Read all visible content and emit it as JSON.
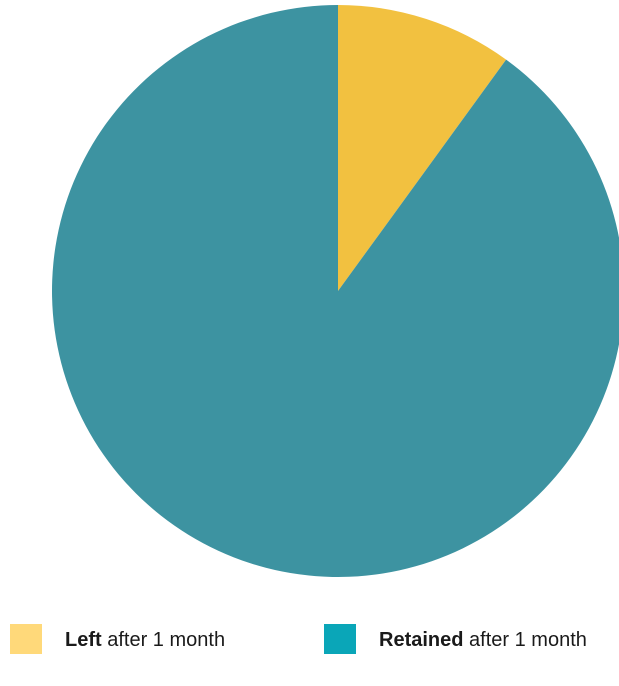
{
  "chart_data": {
    "type": "pie",
    "start_angle_deg": 0,
    "direction": "clockwise",
    "slices": [
      {
        "label_bold": "Left",
        "label_rest": " after 1 month",
        "value": 10,
        "color": "#F2C140"
      },
      {
        "label_bold": "Retained",
        "label_rest": " after 1 month",
        "value": 90,
        "color": "#3D93A1"
      }
    ],
    "legend": {
      "placement": "bottom",
      "items": [
        {
          "label_bold": "Left",
          "label_rest": " after 1 month",
          "swatch_color": "#FFD97A"
        },
        {
          "label_bold": "Retained",
          "label_rest": " after 1 month",
          "swatch_color": "#0AA6B8"
        }
      ]
    }
  }
}
